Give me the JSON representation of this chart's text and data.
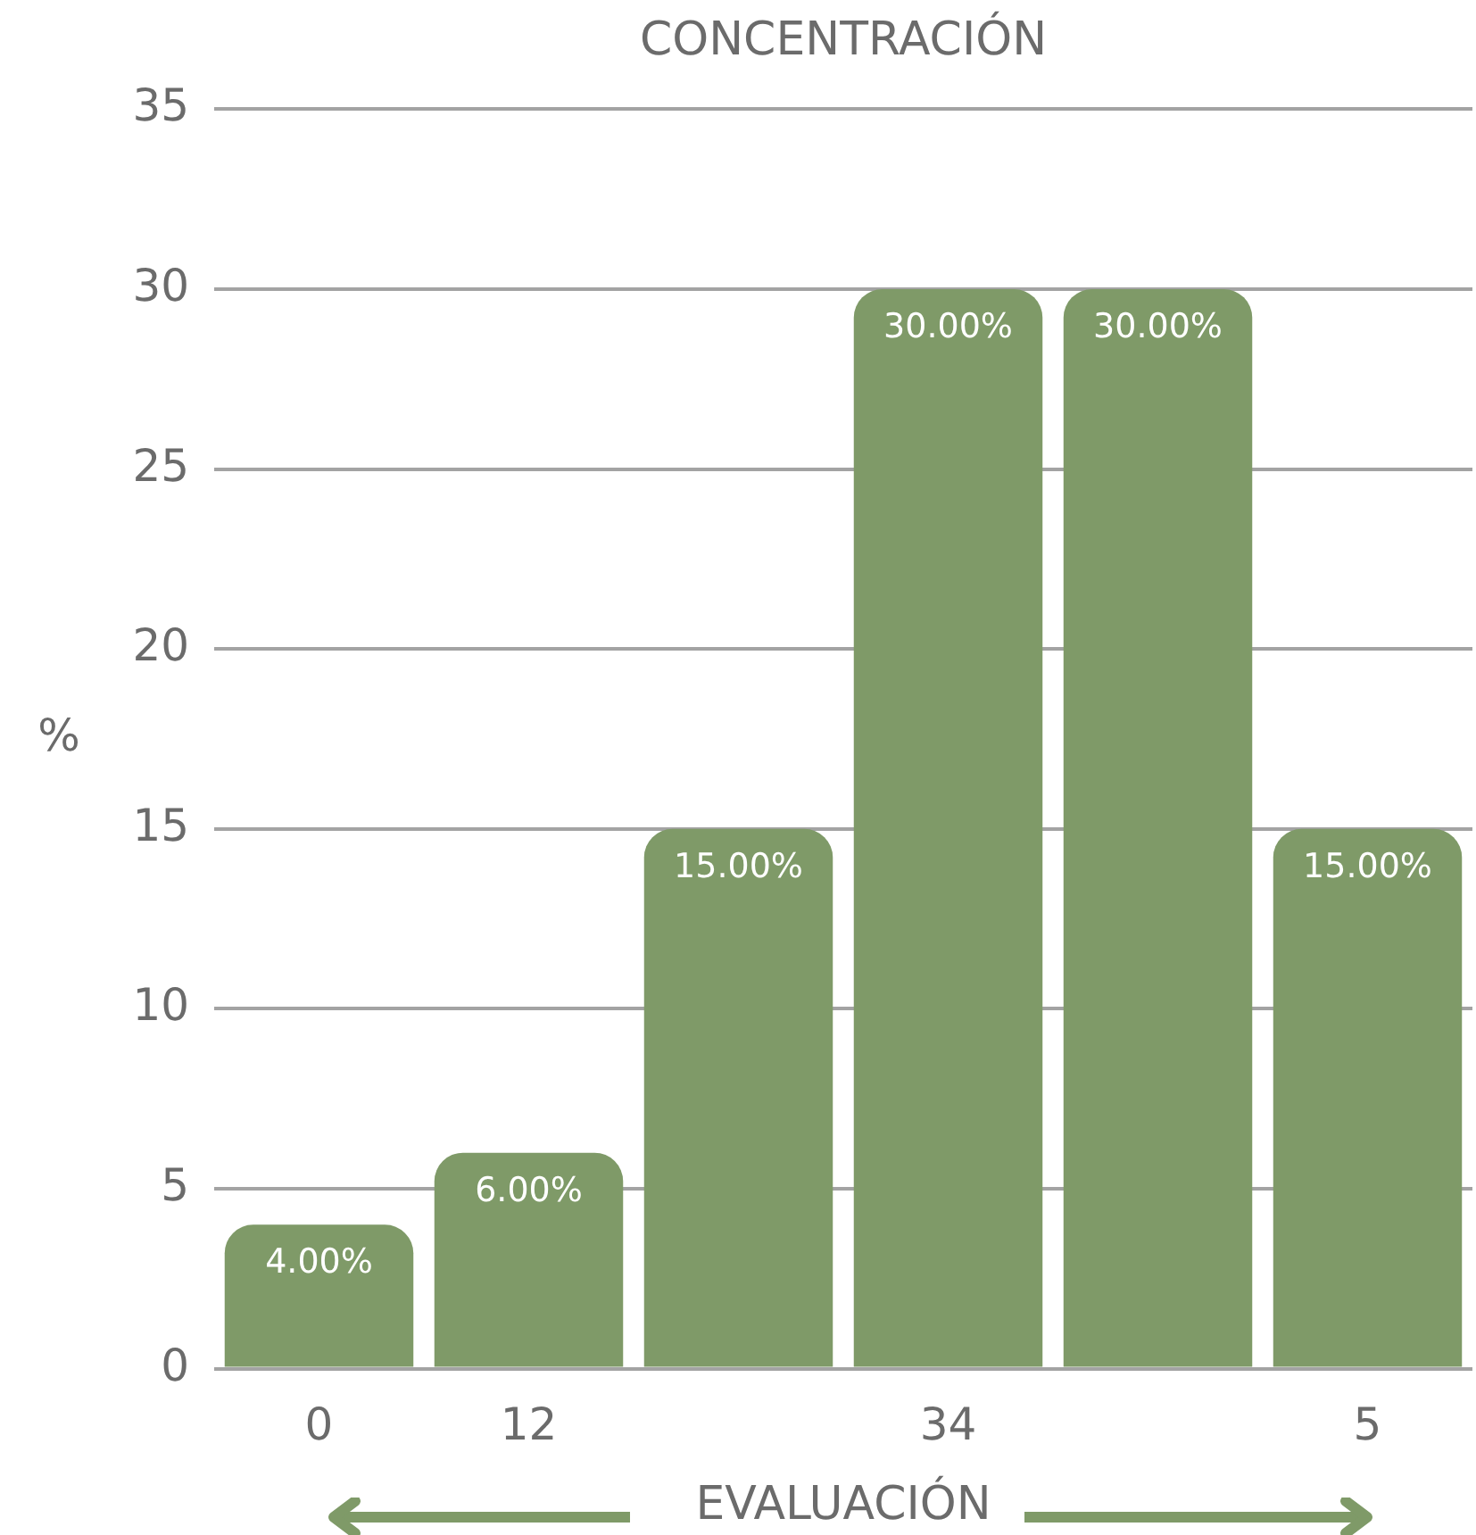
{
  "chart_data": {
    "type": "bar",
    "title": "CONCENTRACIÓN",
    "xlabel": "EVALUACIÓN",
    "ylabel": "%",
    "categories": [
      "0",
      "12",
      null,
      "34",
      null,
      "5"
    ],
    "values": [
      4,
      6,
      15,
      30,
      30,
      15
    ],
    "color": "#7f9a68",
    "value_labels": [
      "4.00%",
      "6.00%",
      "15.00%",
      "30.00%",
      "30.00%",
      "15.00%"
    ],
    "ylim": [
      0,
      35
    ],
    "yticks": [
      0,
      5,
      10,
      15,
      20,
      25,
      30,
      35
    ],
    "grid": "y"
  }
}
